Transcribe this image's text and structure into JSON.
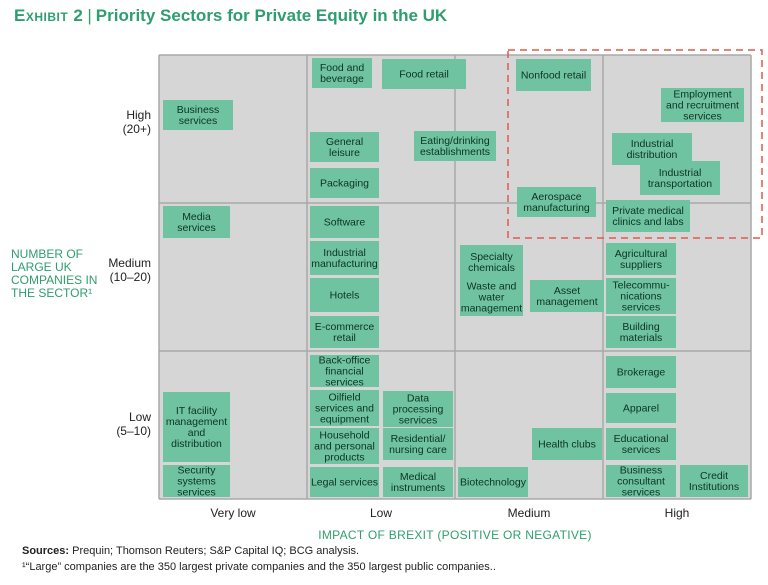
{
  "title": {
    "exhibit": "Exhibit 2",
    "text": "Priority Sectors for Private Equity in the UK"
  },
  "chart_data": {
    "type": "matrix",
    "xlabel": "IMPACT OF BREXIT (POSITIVE OR NEGATIVE)",
    "ylabel": [
      "NUMBER OF",
      "LARGE UK",
      "COMPANIES IN",
      "THE SECTOR¹"
    ],
    "x_categories": [
      "Very low",
      "Low",
      "Medium",
      "High"
    ],
    "y_categories": [
      {
        "lines": [
          "High",
          "(20+)"
        ]
      },
      {
        "lines": [
          "Medium",
          "(10–20)"
        ]
      },
      {
        "lines": [
          "Low",
          "(5–10)"
        ]
      }
    ],
    "highlight": {
      "x": [
        "Medium",
        "High"
      ],
      "y": [
        "High"
      ],
      "style": "dashed",
      "color": "#e05a4a"
    },
    "sectors": [
      {
        "lines": [
          "Business",
          "services"
        ],
        "x": "Very low",
        "y": "High"
      },
      {
        "lines": [
          "Food and",
          "beverage"
        ],
        "x": "Low",
        "y": "High"
      },
      {
        "lines": [
          "Food retail"
        ],
        "x": "Low",
        "y": "High"
      },
      {
        "lines": [
          "General",
          "leisure"
        ],
        "x": "Low",
        "y": "High"
      },
      {
        "lines": [
          "Eating/drinking",
          "establishments"
        ],
        "x": "Low",
        "y": "High"
      },
      {
        "lines": [
          "Packaging"
        ],
        "x": "Low",
        "y": "High"
      },
      {
        "lines": [
          "Nonfood retail"
        ],
        "x": "Medium",
        "y": "High"
      },
      {
        "lines": [
          "Aerospace",
          "manufacturing"
        ],
        "x": "Medium",
        "y": "High"
      },
      {
        "lines": [
          "Employment",
          "and recruitment",
          "services"
        ],
        "x": "High",
        "y": "High"
      },
      {
        "lines": [
          "Industrial",
          "distribution"
        ],
        "x": "High",
        "y": "High"
      },
      {
        "lines": [
          "Industrial",
          "transportation"
        ],
        "x": "High",
        "y": "High"
      },
      {
        "lines": [
          "Private medical",
          "clinics and labs"
        ],
        "x": "High",
        "y": "High"
      },
      {
        "lines": [
          "Media",
          "services"
        ],
        "x": "Very low",
        "y": "Medium"
      },
      {
        "lines": [
          "Software"
        ],
        "x": "Low",
        "y": "Medium"
      },
      {
        "lines": [
          "Industrial",
          "manufacturing"
        ],
        "x": "Low",
        "y": "Medium"
      },
      {
        "lines": [
          "Hotels"
        ],
        "x": "Low",
        "y": "Medium"
      },
      {
        "lines": [
          "E-commerce",
          "retail"
        ],
        "x": "Low",
        "y": "Medium"
      },
      {
        "lines": [
          "Specialty",
          "chemicals"
        ],
        "x": "Medium",
        "y": "Medium"
      },
      {
        "lines": [
          "Waste and",
          "water",
          "management"
        ],
        "x": "Medium",
        "y": "Medium"
      },
      {
        "lines": [
          "Asset",
          "management"
        ],
        "x": "Medium",
        "y": "Medium"
      },
      {
        "lines": [
          "Agricultural",
          "suppliers"
        ],
        "x": "High",
        "y": "Medium"
      },
      {
        "lines": [
          "Telecommu-",
          "nications",
          "services"
        ],
        "x": "High",
        "y": "Medium"
      },
      {
        "lines": [
          "Building",
          "materials"
        ],
        "x": "High",
        "y": "Medium"
      },
      {
        "lines": [
          "IT facility",
          "management",
          "and",
          "distribution"
        ],
        "x": "Very low",
        "y": "Low"
      },
      {
        "lines": [
          "Security",
          "systems",
          "services"
        ],
        "x": "Very low",
        "y": "Low"
      },
      {
        "lines": [
          "Back-office",
          "financial",
          "services"
        ],
        "x": "Low",
        "y": "Low"
      },
      {
        "lines": [
          "Oilfield",
          "services and",
          "equipment"
        ],
        "x": "Low",
        "y": "Low"
      },
      {
        "lines": [
          "Data",
          "processing",
          "services"
        ],
        "x": "Low",
        "y": "Low"
      },
      {
        "lines": [
          "Household",
          "and personal",
          "products"
        ],
        "x": "Low",
        "y": "Low"
      },
      {
        "lines": [
          "Residential/",
          "nursing care"
        ],
        "x": "Low",
        "y": "Low"
      },
      {
        "lines": [
          "Legal services"
        ],
        "x": "Low",
        "y": "Low"
      },
      {
        "lines": [
          "Medical",
          "instruments"
        ],
        "x": "Low",
        "y": "Low"
      },
      {
        "lines": [
          "Biotechnology"
        ],
        "x": "Medium",
        "y": "Low"
      },
      {
        "lines": [
          "Health clubs"
        ],
        "x": "Medium",
        "y": "Low"
      },
      {
        "lines": [
          "Brokerage"
        ],
        "x": "High",
        "y": "Low"
      },
      {
        "lines": [
          "Apparel"
        ],
        "x": "High",
        "y": "Low"
      },
      {
        "lines": [
          "Educational",
          "services"
        ],
        "x": "High",
        "y": "Low"
      },
      {
        "lines": [
          "Business",
          "consultant",
          "services"
        ],
        "x": "High",
        "y": "Low"
      },
      {
        "lines": [
          "Credit",
          "Institutions"
        ],
        "x": "High",
        "y": "Low"
      }
    ]
  },
  "sources": {
    "label": "Sources:",
    "text": "Prequin; Thomson Reuters; S&P Capital IQ; BCG analysis."
  },
  "footnote": "¹“Large” companies are the 350 largest private companies and the 350 largest public companies.."
}
